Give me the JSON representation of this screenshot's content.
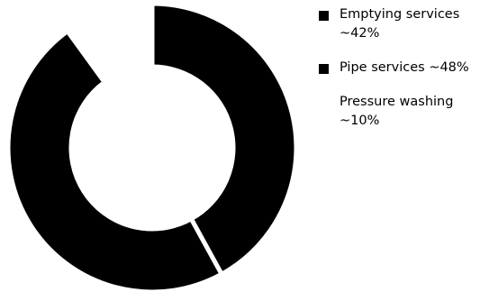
{
  "chart_data": {
    "type": "pie",
    "style": "donut",
    "legend_placement": "right",
    "slices": [
      {
        "label": "Emptying services ~42%",
        "value": 42,
        "color": "#000000",
        "show_swatch": true
      },
      {
        "label": "Pipe services ~48%",
        "value": 48,
        "color": "#000000",
        "show_swatch": true
      },
      {
        "label": "Pressure washing ~10%",
        "value": 10,
        "color": "#ffffff",
        "show_swatch": false
      }
    ],
    "start_angle_deg": 0,
    "direction": "clockwise",
    "slice_separator_color": "#ffffff"
  }
}
